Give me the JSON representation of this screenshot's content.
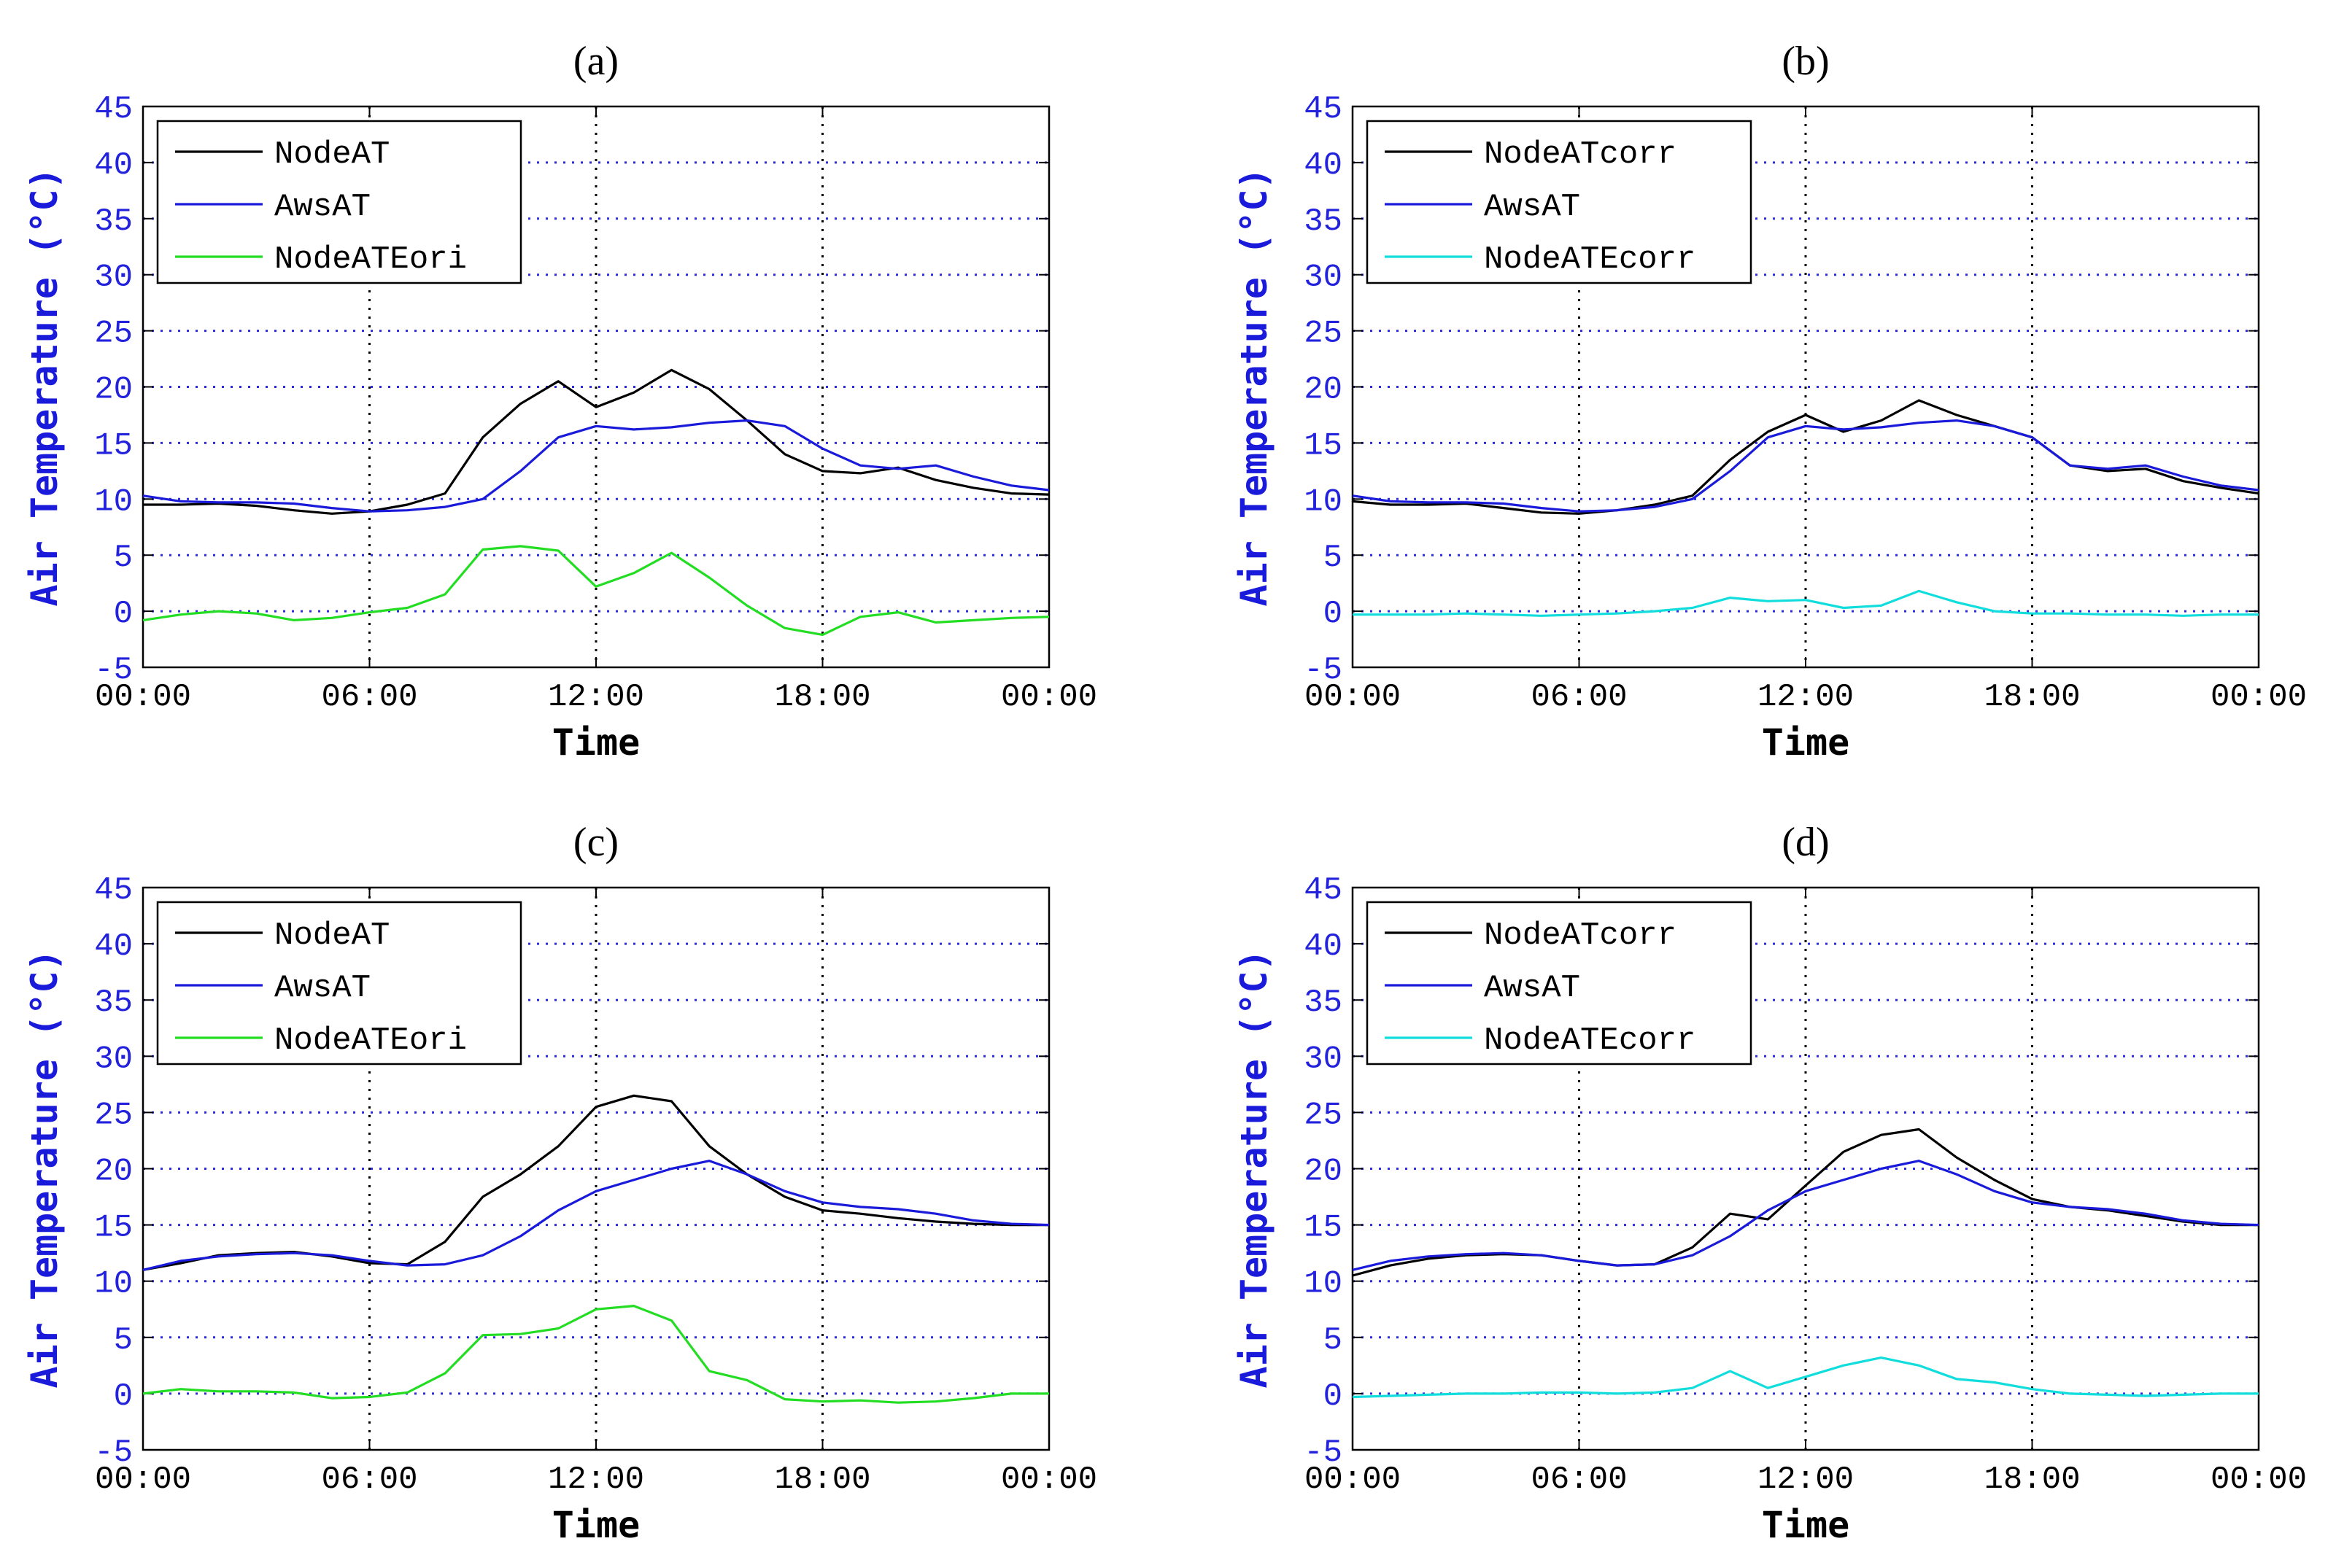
{
  "chart_data": [
    {
      "type": "line",
      "title": "(a)",
      "xlabel": "Time",
      "ylabel": "Air Temperature (°C)",
      "xlim": [
        "00:00",
        "00:00"
      ],
      "ylim": [
        -5,
        45
      ],
      "xticks": [
        "00:00",
        "06:00",
        "12:00",
        "18:00",
        "00:00"
      ],
      "yticks": [
        -5,
        0,
        5,
        10,
        15,
        20,
        25,
        30,
        35,
        40,
        45
      ],
      "grid": true,
      "legend_position": "top-left",
      "x_hours": [
        0,
        1,
        2,
        3,
        4,
        5,
        6,
        7,
        8,
        9,
        10,
        11,
        12,
        13,
        14,
        15,
        16,
        17,
        18,
        19,
        20,
        21,
        22,
        23,
        24
      ],
      "series": [
        {
          "name": "NodeAT",
          "color": "#000000",
          "values": [
            9.5,
            9.5,
            9.6,
            9.4,
            9.0,
            8.7,
            8.9,
            9.5,
            10.5,
            15.5,
            18.5,
            20.5,
            18.2,
            19.5,
            21.5,
            19.8,
            17.0,
            14.0,
            12.5,
            12.3,
            12.8,
            11.7,
            11.0,
            10.5,
            10.4
          ]
        },
        {
          "name": "AwsAT",
          "color": "#1a1adb",
          "values": [
            10.3,
            9.8,
            9.7,
            9.7,
            9.6,
            9.2,
            8.9,
            9.0,
            9.3,
            10.0,
            12.5,
            15.5,
            16.5,
            16.2,
            16.4,
            16.8,
            17.0,
            16.5,
            14.5,
            13.0,
            12.7,
            13.0,
            12.0,
            11.2,
            10.8
          ]
        },
        {
          "name": "NodeATEori",
          "color": "#22dd22",
          "values": [
            -0.8,
            -0.3,
            0.0,
            -0.2,
            -0.8,
            -0.6,
            -0.1,
            0.3,
            1.5,
            5.5,
            5.8,
            5.4,
            2.2,
            3.4,
            5.2,
            3.0,
            0.5,
            -1.5,
            -2.1,
            -0.5,
            -0.1,
            -1.0,
            -0.8,
            -0.6,
            -0.5
          ]
        }
      ]
    },
    {
      "type": "line",
      "title": "(b)",
      "xlabel": "Time",
      "ylabel": "Air Temperature (°C)",
      "xlim": [
        "00:00",
        "00:00"
      ],
      "ylim": [
        -5,
        45
      ],
      "xticks": [
        "00:00",
        "06:00",
        "12:00",
        "18:00",
        "00:00"
      ],
      "yticks": [
        -5,
        0,
        5,
        10,
        15,
        20,
        25,
        30,
        35,
        40,
        45
      ],
      "grid": true,
      "legend_position": "top-left",
      "x_hours": [
        0,
        1,
        2,
        3,
        4,
        5,
        6,
        7,
        8,
        9,
        10,
        11,
        12,
        13,
        14,
        15,
        16,
        17,
        18,
        19,
        20,
        21,
        22,
        23,
        24
      ],
      "series": [
        {
          "name": "NodeATcorr",
          "color": "#000000",
          "values": [
            9.8,
            9.5,
            9.5,
            9.6,
            9.2,
            8.8,
            8.7,
            9.0,
            9.5,
            10.3,
            13.5,
            16.0,
            17.5,
            16.0,
            17.0,
            18.8,
            17.5,
            16.5,
            15.5,
            13.0,
            12.5,
            12.7,
            11.6,
            11.0,
            10.5
          ]
        },
        {
          "name": "AwsAT",
          "color": "#1a1adb",
          "values": [
            10.3,
            9.8,
            9.7,
            9.7,
            9.6,
            9.2,
            8.9,
            9.0,
            9.3,
            10.0,
            12.5,
            15.5,
            16.5,
            16.2,
            16.4,
            16.8,
            17.0,
            16.5,
            15.5,
            13.0,
            12.7,
            13.0,
            12.0,
            11.2,
            10.8
          ]
        },
        {
          "name": "NodeATEcorr",
          "color": "#11dddd",
          "values": [
            -0.3,
            -0.3,
            -0.3,
            -0.2,
            -0.3,
            -0.4,
            -0.3,
            -0.2,
            0.0,
            0.3,
            1.2,
            0.9,
            1.0,
            0.3,
            0.5,
            1.8,
            0.8,
            0.0,
            -0.2,
            -0.2,
            -0.3,
            -0.3,
            -0.4,
            -0.3,
            -0.3
          ]
        }
      ]
    },
    {
      "type": "line",
      "title": "(c)",
      "xlabel": "Time",
      "ylabel": "Air Temperature (°C)",
      "xlim": [
        "00:00",
        "00:00"
      ],
      "ylim": [
        -5,
        45
      ],
      "xticks": [
        "00:00",
        "06:00",
        "12:00",
        "18:00",
        "00:00"
      ],
      "yticks": [
        -5,
        0,
        5,
        10,
        15,
        20,
        25,
        30,
        35,
        40,
        45
      ],
      "grid": true,
      "legend_position": "top-left",
      "x_hours": [
        0,
        1,
        2,
        3,
        4,
        5,
        6,
        7,
        8,
        9,
        10,
        11,
        12,
        13,
        14,
        15,
        16,
        17,
        18,
        19,
        20,
        21,
        22,
        23,
        24
      ],
      "series": [
        {
          "name": "NodeAT",
          "color": "#000000",
          "values": [
            11.0,
            11.6,
            12.3,
            12.5,
            12.6,
            12.2,
            11.6,
            11.5,
            13.5,
            17.5,
            19.5,
            22.0,
            25.5,
            26.5,
            26.0,
            22.0,
            19.5,
            17.5,
            16.3,
            16.0,
            15.6,
            15.3,
            15.1,
            15.0,
            15.0
          ]
        },
        {
          "name": "AwsAT",
          "color": "#1a1adb",
          "values": [
            11.0,
            11.8,
            12.2,
            12.4,
            12.5,
            12.3,
            11.8,
            11.4,
            11.5,
            12.3,
            14.0,
            16.3,
            18.0,
            19.0,
            20.0,
            20.7,
            19.5,
            18.0,
            17.0,
            16.6,
            16.4,
            16.0,
            15.4,
            15.1,
            15.0
          ]
        },
        {
          "name": "NodeATEori",
          "color": "#22dd22",
          "values": [
            0.0,
            0.4,
            0.2,
            0.2,
            0.1,
            -0.4,
            -0.3,
            0.1,
            1.8,
            5.2,
            5.3,
            5.8,
            7.5,
            7.8,
            6.5,
            2.0,
            1.2,
            -0.5,
            -0.7,
            -0.6,
            -0.8,
            -0.7,
            -0.4,
            0.0,
            0.0
          ]
        }
      ]
    },
    {
      "type": "line",
      "title": "(d)",
      "xlabel": "Time",
      "ylabel": "Air Temperature (°C)",
      "xlim": [
        "00:00",
        "00:00"
      ],
      "ylim": [
        -5,
        45
      ],
      "xticks": [
        "00:00",
        "06:00",
        "12:00",
        "18:00",
        "00:00"
      ],
      "yticks": [
        -5,
        0,
        5,
        10,
        15,
        20,
        25,
        30,
        35,
        40,
        45
      ],
      "grid": true,
      "legend_position": "top-left",
      "x_hours": [
        0,
        1,
        2,
        3,
        4,
        5,
        6,
        7,
        8,
        9,
        10,
        11,
        12,
        13,
        14,
        15,
        16,
        17,
        18,
        19,
        20,
        21,
        22,
        23,
        24
      ],
      "series": [
        {
          "name": "NodeATcorr",
          "color": "#000000",
          "values": [
            10.5,
            11.4,
            12.0,
            12.3,
            12.4,
            12.3,
            11.8,
            11.4,
            11.5,
            13.0,
            16.0,
            15.5,
            18.5,
            21.5,
            23.0,
            23.5,
            21.0,
            19.0,
            17.3,
            16.6,
            16.3,
            15.8,
            15.3,
            15.0,
            15.0
          ]
        },
        {
          "name": "AwsAT",
          "color": "#1a1adb",
          "values": [
            11.0,
            11.8,
            12.2,
            12.4,
            12.5,
            12.3,
            11.8,
            11.4,
            11.5,
            12.3,
            14.0,
            16.3,
            18.0,
            19.0,
            20.0,
            20.7,
            19.5,
            18.0,
            17.0,
            16.6,
            16.4,
            16.0,
            15.4,
            15.1,
            15.0
          ]
        },
        {
          "name": "NodeATEcorr",
          "color": "#11dddd",
          "values": [
            -0.3,
            -0.2,
            -0.1,
            0.0,
            0.0,
            0.1,
            0.1,
            0.0,
            0.1,
            0.5,
            2.0,
            0.5,
            1.5,
            2.5,
            3.2,
            2.5,
            1.3,
            1.0,
            0.4,
            0.0,
            -0.1,
            -0.2,
            -0.1,
            0.0,
            0.0
          ]
        }
      ]
    }
  ]
}
